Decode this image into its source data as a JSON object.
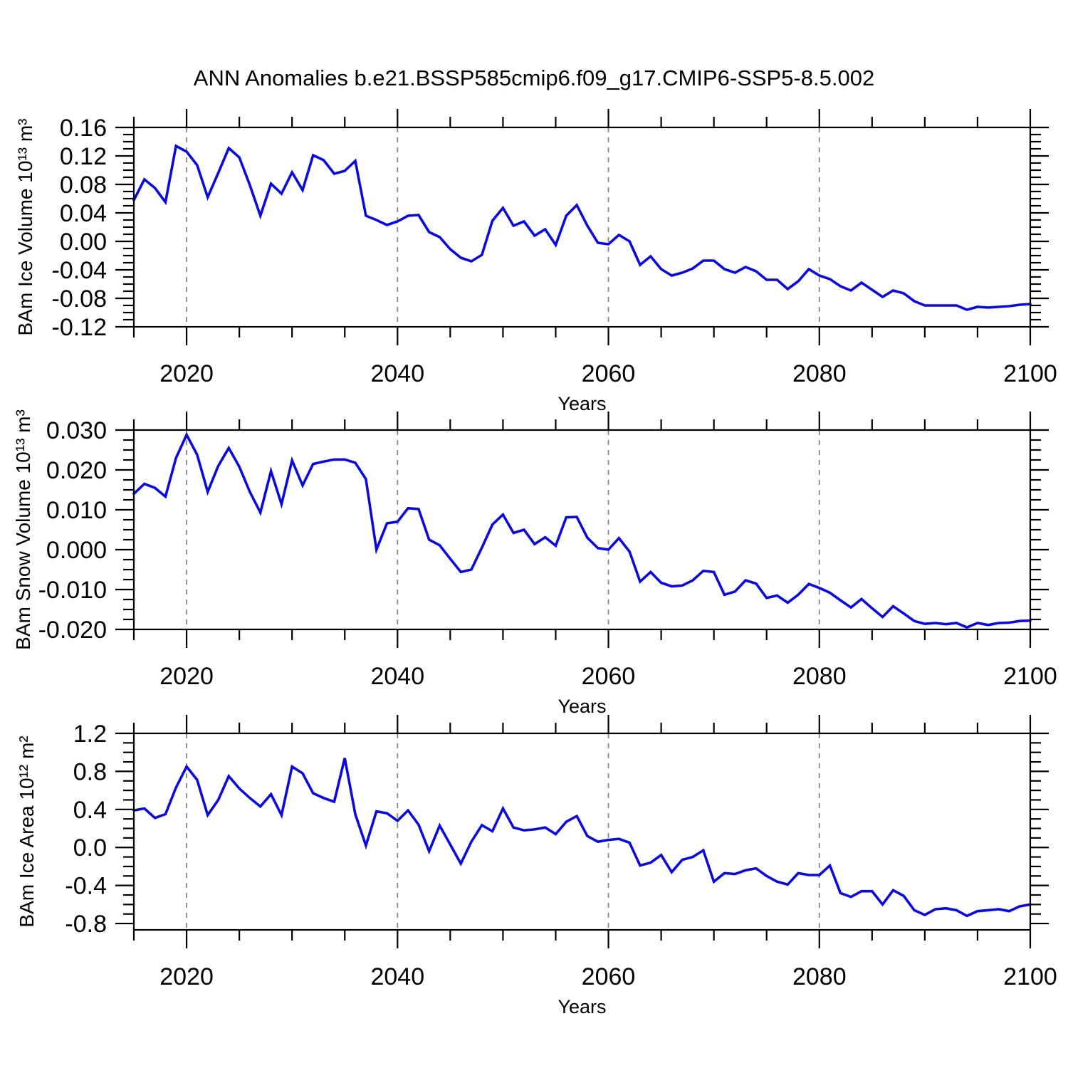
{
  "title": "ANN Anomalies b.e21.BSSP585cmip6.f09_g17.CMIP6-SSP5-8.5.002",
  "chart_data": {
    "type": "line",
    "series_color": "#0a0ae0",
    "gridline_color": "#888888",
    "frame_color": "#000000",
    "x_label": "Years",
    "x_range": [
      2015,
      2100
    ],
    "x_ticks": [
      2020,
      2040,
      2060,
      2080,
      2100
    ],
    "x_tick_labels": [
      "2020",
      "2040",
      "2060",
      "2080",
      "2100"
    ],
    "x_minor_step": 5,
    "gridline_years": [
      2020,
      2040,
      2060,
      2080
    ],
    "years": [
      2015,
      2016,
      2017,
      2018,
      2019,
      2020,
      2021,
      2022,
      2023,
      2024,
      2025,
      2026,
      2027,
      2028,
      2029,
      2030,
      2031,
      2032,
      2033,
      2034,
      2035,
      2036,
      2037,
      2038,
      2039,
      2040,
      2041,
      2042,
      2043,
      2044,
      2045,
      2046,
      2047,
      2048,
      2049,
      2050,
      2051,
      2052,
      2053,
      2054,
      2055,
      2056,
      2057,
      2058,
      2059,
      2060,
      2061,
      2062,
      2063,
      2064,
      2065,
      2066,
      2067,
      2068,
      2069,
      2070,
      2071,
      2072,
      2073,
      2074,
      2075,
      2076,
      2077,
      2078,
      2079,
      2080,
      2081,
      2082,
      2083,
      2084,
      2085,
      2086,
      2087,
      2088,
      2089,
      2090,
      2091,
      2092,
      2093,
      2094,
      2095,
      2096,
      2097,
      2098,
      2099,
      2100
    ],
    "panels": [
      {
        "name": "ice-volume",
        "ylabel": "BAm Ice Volume 10¹³ m³",
        "ylim": [
          -0.12,
          0.16
        ],
        "yticks": [
          0.16,
          0.12,
          0.08,
          0.04,
          0.0,
          -0.04,
          -0.08,
          -0.12
        ],
        "ytick_labels": [
          "0.16",
          "0.12",
          "0.08",
          "0.04",
          "0.00",
          "-0.04",
          "-0.08",
          "-0.12"
        ],
        "y_minor_step": 0.01,
        "values": [
          0.058,
          0.087,
          0.075,
          0.055,
          0.134,
          0.126,
          0.107,
          0.062,
          0.096,
          0.131,
          0.118,
          0.079,
          0.036,
          0.081,
          0.067,
          0.097,
          0.072,
          0.121,
          0.114,
          0.095,
          0.099,
          0.113,
          0.036,
          0.03,
          0.023,
          0.028,
          0.036,
          0.037,
          0.013,
          0.006,
          -0.011,
          -0.023,
          -0.028,
          -0.019,
          0.029,
          0.047,
          0.022,
          0.028,
          0.008,
          0.017,
          -0.005,
          0.036,
          0.051,
          0.022,
          -0.002,
          -0.004,
          0.009,
          0.0,
          -0.033,
          -0.021,
          -0.039,
          -0.048,
          -0.044,
          -0.038,
          -0.027,
          -0.027,
          -0.039,
          -0.044,
          -0.036,
          -0.042,
          -0.054,
          -0.054,
          -0.067,
          -0.056,
          -0.039,
          -0.048,
          -0.053,
          -0.063,
          -0.069,
          -0.058,
          -0.068,
          -0.078,
          -0.069,
          -0.073,
          -0.084,
          -0.09,
          -0.09,
          -0.09,
          -0.09,
          -0.096,
          -0.092,
          -0.093,
          -0.092,
          -0.091,
          -0.089,
          -0.088
        ]
      },
      {
        "name": "snow-volume",
        "ylabel": "BAm Snow Volume 10¹³ m³",
        "ylim": [
          -0.02,
          0.03
        ],
        "yticks": [
          0.03,
          0.02,
          0.01,
          0.0,
          -0.01,
          -0.02
        ],
        "ytick_labels": [
          "0.030",
          "0.020",
          "0.010",
          "0.000",
          "-0.010",
          "-0.020"
        ],
        "y_minor_step": 0.0025,
        "values": [
          0.014,
          0.0165,
          0.0155,
          0.0133,
          0.023,
          0.0288,
          0.0238,
          0.0145,
          0.021,
          0.0255,
          0.0208,
          0.0145,
          0.0093,
          0.0197,
          0.0114,
          0.0224,
          0.0161,
          0.0215,
          0.0221,
          0.0226,
          0.0226,
          0.0218,
          0.0177,
          0.0,
          0.0066,
          0.007,
          0.0104,
          0.0102,
          0.0025,
          0.0011,
          -0.0023,
          -0.0056,
          -0.005,
          0.0005,
          0.0063,
          0.0088,
          0.0042,
          0.005,
          0.0014,
          0.0031,
          0.001,
          0.0081,
          0.0082,
          0.003,
          0.0004,
          0.0,
          0.0029,
          -0.0005,
          -0.008,
          -0.0056,
          -0.0083,
          -0.0092,
          -0.009,
          -0.0077,
          -0.0053,
          -0.0056,
          -0.0113,
          -0.0105,
          -0.0077,
          -0.0085,
          -0.0121,
          -0.0115,
          -0.0133,
          -0.0113,
          -0.0086,
          -0.0096,
          -0.0108,
          -0.0127,
          -0.0145,
          -0.0124,
          -0.0147,
          -0.0169,
          -0.0142,
          -0.016,
          -0.0179,
          -0.0186,
          -0.0184,
          -0.0187,
          -0.0184,
          -0.0195,
          -0.0184,
          -0.0189,
          -0.0184,
          -0.0183,
          -0.0179,
          -0.0178
        ]
      },
      {
        "name": "ice-area",
        "ylabel": "BAm Ice Area 10¹² m²",
        "ylim": [
          -0.867,
          1.2
        ],
        "yticks": [
          1.2,
          0.8,
          0.4,
          0.0,
          -0.4,
          -0.8
        ],
        "ytick_labels": [
          "1.2",
          "0.8",
          "0.4",
          "0.0",
          "-0.4",
          "-0.8"
        ],
        "y_minor_step": 0.1,
        "values": [
          0.39,
          0.41,
          0.31,
          0.35,
          0.63,
          0.85,
          0.71,
          0.34,
          0.5,
          0.75,
          0.62,
          0.52,
          0.43,
          0.56,
          0.34,
          0.85,
          0.78,
          0.57,
          0.52,
          0.48,
          0.94,
          0.35,
          0.02,
          0.38,
          0.36,
          0.28,
          0.39,
          0.24,
          -0.04,
          0.23,
          0.03,
          -0.17,
          0.06,
          0.235,
          0.17,
          0.41,
          0.21,
          0.18,
          0.19,
          0.21,
          0.14,
          0.27,
          0.33,
          0.12,
          0.06,
          0.08,
          0.09,
          0.05,
          -0.19,
          -0.16,
          -0.08,
          -0.26,
          -0.13,
          -0.1,
          -0.03,
          -0.36,
          -0.27,
          -0.28,
          -0.24,
          -0.22,
          -0.3,
          -0.36,
          -0.39,
          -0.27,
          -0.29,
          -0.29,
          -0.19,
          -0.48,
          -0.52,
          -0.46,
          -0.46,
          -0.6,
          -0.45,
          -0.51,
          -0.66,
          -0.71,
          -0.65,
          -0.64,
          -0.66,
          -0.72,
          -0.67,
          -0.66,
          -0.65,
          -0.67,
          -0.62,
          -0.6
        ]
      }
    ]
  }
}
